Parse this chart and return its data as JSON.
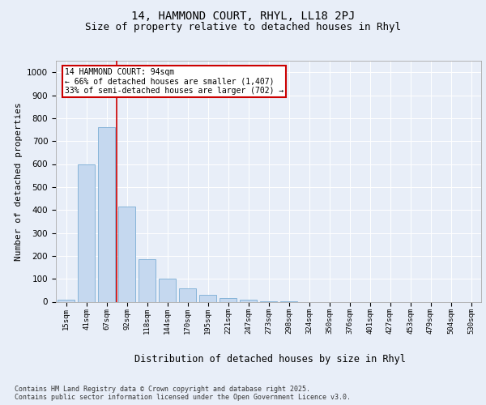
{
  "title1": "14, HAMMOND COURT, RHYL, LL18 2PJ",
  "title2": "Size of property relative to detached houses in Rhyl",
  "xlabel": "Distribution of detached houses by size in Rhyl",
  "ylabel": "Number of detached properties",
  "bar_labels": [
    "15sqm",
    "41sqm",
    "67sqm",
    "92sqm",
    "118sqm",
    "144sqm",
    "170sqm",
    "195sqm",
    "221sqm",
    "247sqm",
    "273sqm",
    "298sqm",
    "324sqm",
    "350sqm",
    "376sqm",
    "401sqm",
    "427sqm",
    "453sqm",
    "479sqm",
    "504sqm",
    "530sqm"
  ],
  "bar_values": [
    10,
    600,
    760,
    415,
    185,
    100,
    60,
    30,
    15,
    8,
    3,
    1,
    0,
    0,
    0,
    0,
    0,
    0,
    0,
    0,
    0
  ],
  "bar_color": "#c5d8ef",
  "bar_edge_color": "#7aadd4",
  "vline_color": "#cc0000",
  "annotation_text": "14 HAMMOND COURT: 94sqm\n← 66% of detached houses are smaller (1,407)\n33% of semi-detached houses are larger (702) →",
  "annotation_box_color": "#ffffff",
  "annotation_box_edge": "#cc0000",
  "ylim": [
    0,
    1050
  ],
  "yticks": [
    0,
    100,
    200,
    300,
    400,
    500,
    600,
    700,
    800,
    900,
    1000
  ],
  "bg_color": "#e8eef8",
  "plot_bg": "#e8eef8",
  "footer": "Contains HM Land Registry data © Crown copyright and database right 2025.\nContains public sector information licensed under the Open Government Licence v3.0.",
  "title1_fontsize": 10,
  "title2_fontsize": 9,
  "xlabel_fontsize": 8.5,
  "ylabel_fontsize": 8
}
